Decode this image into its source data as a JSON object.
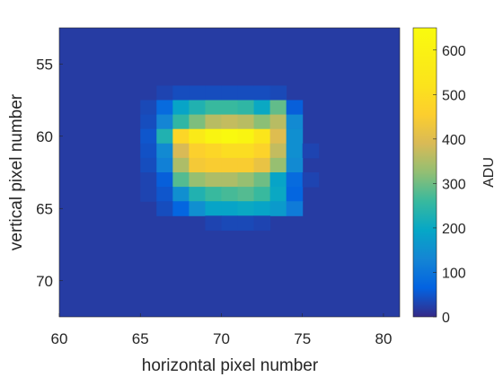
{
  "chart_data": {
    "type": "heatmap",
    "title": "",
    "xlabel": "horizontal pixel number",
    "ylabel": "vertical pixel number",
    "xlim": [
      60,
      81
    ],
    "ylim": [
      53,
      73
    ],
    "y_reversed": true,
    "x_start": 60,
    "y_start": 53,
    "xticks": [
      60,
      65,
      70,
      75,
      80
    ],
    "yticks": [
      55,
      60,
      65,
      70
    ],
    "xtick_labels": [
      "60",
      "65",
      "70",
      "75",
      "80"
    ],
    "ytick_labels": [
      "55",
      "60",
      "65",
      "70"
    ],
    "colormap": "parula",
    "colorbar": {
      "label": "ADU",
      "min": 0,
      "max": 650,
      "ticks": [
        0,
        100,
        200,
        300,
        400,
        500,
        600
      ],
      "tick_labels": [
        "0",
        "100",
        "200",
        "300",
        "400",
        "500",
        "600"
      ]
    },
    "background_value": 20,
    "cells": [
      {
        "x": 66,
        "y": 57,
        "v": 30
      },
      {
        "x": 67,
        "y": 57,
        "v": 40
      },
      {
        "x": 68,
        "y": 57,
        "v": 40
      },
      {
        "x": 69,
        "y": 57,
        "v": 40
      },
      {
        "x": 70,
        "y": 57,
        "v": 40
      },
      {
        "x": 71,
        "y": 57,
        "v": 40
      },
      {
        "x": 72,
        "y": 57,
        "v": 40
      },
      {
        "x": 73,
        "y": 57,
        "v": 35
      },
      {
        "x": 65,
        "y": 58,
        "v": 35
      },
      {
        "x": 66,
        "y": 58,
        "v": 80
      },
      {
        "x": 67,
        "y": 58,
        "v": 190
      },
      {
        "x": 68,
        "y": 58,
        "v": 230
      },
      {
        "x": 69,
        "y": 58,
        "v": 260
      },
      {
        "x": 70,
        "y": 58,
        "v": 260
      },
      {
        "x": 71,
        "y": 58,
        "v": 250
      },
      {
        "x": 72,
        "y": 58,
        "v": 200
      },
      {
        "x": 73,
        "y": 58,
        "v": 290
      },
      {
        "x": 74,
        "y": 58,
        "v": 60
      },
      {
        "x": 65,
        "y": 59,
        "v": 40
      },
      {
        "x": 66,
        "y": 59,
        "v": 130
      },
      {
        "x": 67,
        "y": 59,
        "v": 250
      },
      {
        "x": 68,
        "y": 59,
        "v": 310
      },
      {
        "x": 69,
        "y": 59,
        "v": 360
      },
      {
        "x": 70,
        "y": 59,
        "v": 370
      },
      {
        "x": 71,
        "y": 59,
        "v": 360
      },
      {
        "x": 72,
        "y": 59,
        "v": 320
      },
      {
        "x": 73,
        "y": 59,
        "v": 360
      },
      {
        "x": 74,
        "y": 59,
        "v": 140
      },
      {
        "x": 65,
        "y": 60,
        "v": 50
      },
      {
        "x": 66,
        "y": 60,
        "v": 230
      },
      {
        "x": 67,
        "y": 60,
        "v": 480
      },
      {
        "x": 68,
        "y": 60,
        "v": 560
      },
      {
        "x": 69,
        "y": 60,
        "v": 620
      },
      {
        "x": 70,
        "y": 60,
        "v": 640
      },
      {
        "x": 71,
        "y": 60,
        "v": 620
      },
      {
        "x": 72,
        "y": 60,
        "v": 530
      },
      {
        "x": 73,
        "y": 60,
        "v": 400
      },
      {
        "x": 74,
        "y": 60,
        "v": 150
      },
      {
        "x": 65,
        "y": 61,
        "v": 45
      },
      {
        "x": 66,
        "y": 61,
        "v": 140
      },
      {
        "x": 67,
        "y": 61,
        "v": 390
      },
      {
        "x": 68,
        "y": 61,
        "v": 460
      },
      {
        "x": 69,
        "y": 61,
        "v": 480
      },
      {
        "x": 70,
        "y": 61,
        "v": 500
      },
      {
        "x": 71,
        "y": 61,
        "v": 500
      },
      {
        "x": 72,
        "y": 61,
        "v": 470
      },
      {
        "x": 73,
        "y": 61,
        "v": 370
      },
      {
        "x": 74,
        "y": 61,
        "v": 150
      },
      {
        "x": 75,
        "y": 61,
        "v": 30
      },
      {
        "x": 65,
        "y": 62,
        "v": 40
      },
      {
        "x": 66,
        "y": 62,
        "v": 120
      },
      {
        "x": 67,
        "y": 62,
        "v": 350
      },
      {
        "x": 68,
        "y": 62,
        "v": 440
      },
      {
        "x": 69,
        "y": 62,
        "v": 450
      },
      {
        "x": 70,
        "y": 62,
        "v": 450
      },
      {
        "x": 71,
        "y": 62,
        "v": 450
      },
      {
        "x": 72,
        "y": 62,
        "v": 420
      },
      {
        "x": 73,
        "y": 62,
        "v": 330
      },
      {
        "x": 74,
        "y": 62,
        "v": 140
      },
      {
        "x": 65,
        "y": 63,
        "v": 30
      },
      {
        "x": 66,
        "y": 63,
        "v": 60
      },
      {
        "x": 67,
        "y": 63,
        "v": 280
      },
      {
        "x": 68,
        "y": 63,
        "v": 330
      },
      {
        "x": 69,
        "y": 63,
        "v": 350
      },
      {
        "x": 70,
        "y": 63,
        "v": 350
      },
      {
        "x": 71,
        "y": 63,
        "v": 330
      },
      {
        "x": 72,
        "y": 63,
        "v": 300
      },
      {
        "x": 73,
        "y": 63,
        "v": 190
      },
      {
        "x": 74,
        "y": 63,
        "v": 80
      },
      {
        "x": 75,
        "y": 63,
        "v": 30
      },
      {
        "x": 65,
        "y": 64,
        "v": 30
      },
      {
        "x": 66,
        "y": 64,
        "v": 50
      },
      {
        "x": 67,
        "y": 64,
        "v": 150
      },
      {
        "x": 68,
        "y": 64,
        "v": 230
      },
      {
        "x": 69,
        "y": 64,
        "v": 260
      },
      {
        "x": 70,
        "y": 64,
        "v": 270
      },
      {
        "x": 71,
        "y": 64,
        "v": 280
      },
      {
        "x": 72,
        "y": 64,
        "v": 260
      },
      {
        "x": 73,
        "y": 64,
        "v": 200
      },
      {
        "x": 74,
        "y": 64,
        "v": 70
      },
      {
        "x": 66,
        "y": 65,
        "v": 40
      },
      {
        "x": 67,
        "y": 65,
        "v": 70
      },
      {
        "x": 68,
        "y": 65,
        "v": 150
      },
      {
        "x": 69,
        "y": 65,
        "v": 190
      },
      {
        "x": 70,
        "y": 65,
        "v": 190
      },
      {
        "x": 71,
        "y": 65,
        "v": 200
      },
      {
        "x": 72,
        "y": 65,
        "v": 190
      },
      {
        "x": 73,
        "y": 65,
        "v": 170
      },
      {
        "x": 74,
        "y": 65,
        "v": 110
      },
      {
        "x": 69,
        "y": 66,
        "v": 30
      },
      {
        "x": 70,
        "y": 66,
        "v": 35
      },
      {
        "x": 71,
        "y": 66,
        "v": 35
      },
      {
        "x": 72,
        "y": 66,
        "v": 30
      }
    ]
  }
}
